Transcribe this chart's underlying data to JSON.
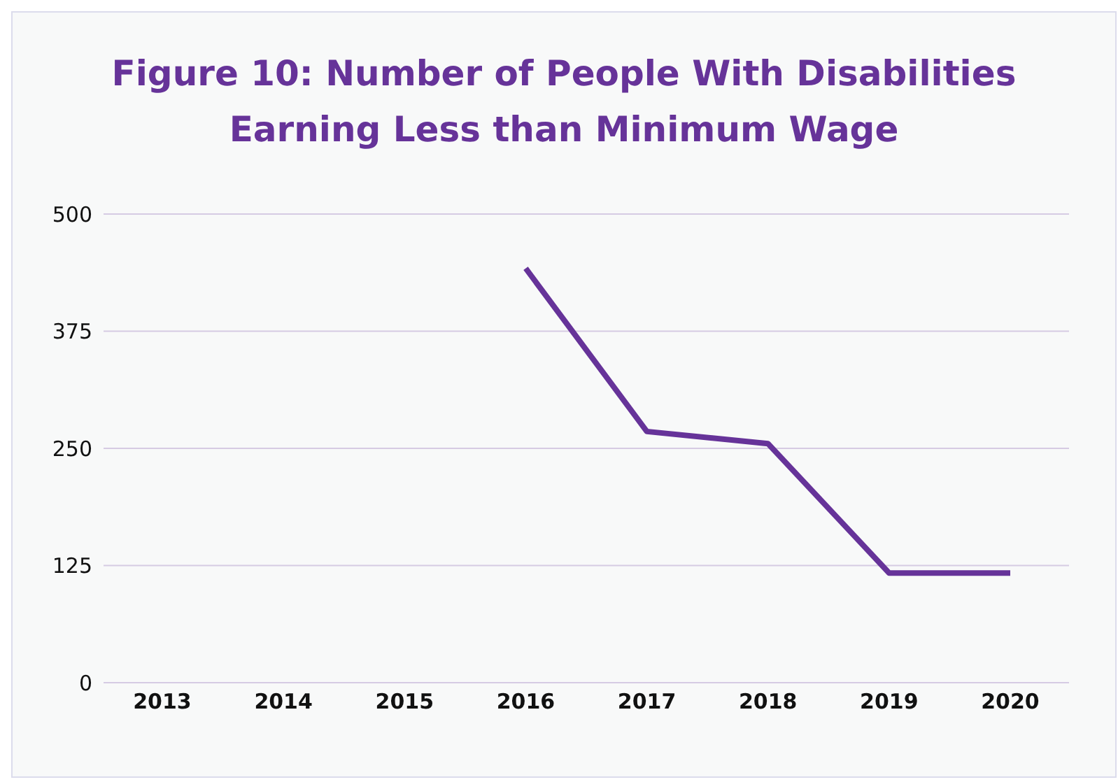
{
  "chart_data": {
    "type": "line",
    "title": "Figure 10: Number of People With Disabilities Earning Less than Minimum Wage",
    "categories": [
      "2013",
      "2014",
      "2015",
      "2016",
      "2017",
      "2018",
      "2019",
      "2020"
    ],
    "series": [
      {
        "color": "#663399",
        "values": [
          null,
          null,
          null,
          442,
          268,
          255,
          117,
          117
        ]
      }
    ],
    "ylim": [
      0,
      500
    ],
    "yticks": [
      0,
      125,
      250,
      375,
      500
    ],
    "grid": "y",
    "legend": false,
    "marker": "none",
    "line_style": "solid"
  }
}
